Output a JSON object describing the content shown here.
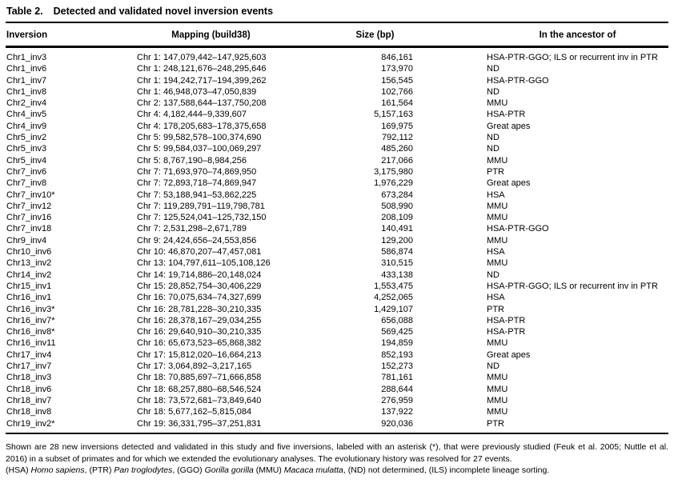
{
  "table": {
    "label": "Table 2.",
    "title": "Detected and validated novel inversion events",
    "columns": [
      "Inversion",
      "Mapping (build38)",
      "Size (bp)",
      "In the ancestor of"
    ],
    "rows": [
      {
        "inv": "Chr1_inv3",
        "map": "Chr 1: 147,079,442–147,925,603",
        "size": "846,161",
        "anc": "HSA-PTR-GGO; ILS or recurrent inv in PTR"
      },
      {
        "inv": "Chr1_inv6",
        "map": "Chr 1: 248,121,676–248,295,646",
        "size": "173,970",
        "anc": "ND"
      },
      {
        "inv": "Chr1_inv7",
        "map": "Chr 1: 194,242,717–194,399,262",
        "size": "156,545",
        "anc": "HSA-PTR-GGO"
      },
      {
        "inv": "Chr1_inv8",
        "map": "Chr 1: 46,948,073–47,050,839",
        "size": "102,766",
        "anc": "ND"
      },
      {
        "inv": "Chr2_inv4",
        "map": "Chr 2: 137,588,644–137,750,208",
        "size": "161,564",
        "anc": "MMU"
      },
      {
        "inv": "Chr4_inv5",
        "map": "Chr 4: 4,182,444–9,339,607",
        "size": "5,157,163",
        "anc": "HSA-PTR"
      },
      {
        "inv": "Chr4_inv9",
        "map": "Chr 4: 178,205,683–178,375,658",
        "size": "169,975",
        "anc": "Great apes"
      },
      {
        "inv": "Chr5_inv2",
        "map": "Chr 5: 99,582,578–100,374,690",
        "size": "792,112",
        "anc": "ND"
      },
      {
        "inv": "Chr5_inv3",
        "map": "Chr 5: 99,584,037–100,069,297",
        "size": "485,260",
        "anc": "ND"
      },
      {
        "inv": "Chr5_inv4",
        "map": "Chr 5: 8,767,190–8,984,256",
        "size": "217,066",
        "anc": "MMU"
      },
      {
        "inv": "Chr7_inv6",
        "map": "Chr 7: 71,693,970–74,869,950",
        "size": "3,175,980",
        "anc": "PTR"
      },
      {
        "inv": "Chr7_inv8",
        "map": "Chr 7: 72,893,718–74,869,947",
        "size": "1,976,229",
        "anc": "Great apes"
      },
      {
        "inv": "Chr7_inv10*",
        "map": "Chr 7: 53,188,941–53,862,225",
        "size": "673,284",
        "anc": "HSA"
      },
      {
        "inv": "Chr7_inv12",
        "map": "Chr 7: 119,289,791–119,798,781",
        "size": "508,990",
        "anc": "MMU"
      },
      {
        "inv": "Chr7_inv16",
        "map": "Chr 7: 125,524,041–125,732,150",
        "size": "208,109",
        "anc": "MMU"
      },
      {
        "inv": "Chr7_inv18",
        "map": "Chr 7: 2,531,298–2,671,789",
        "size": "140,491",
        "anc": "HSA-PTR-GGO"
      },
      {
        "inv": "Chr9_inv4",
        "map": "Chr 9: 24,424,656–24,553,856",
        "size": "129,200",
        "anc": "MMU"
      },
      {
        "inv": "Chr10_inv6",
        "map": "Chr 10: 46,870,207–47,457,081",
        "size": "586,874",
        "anc": "HSA"
      },
      {
        "inv": "Chr13_inv2",
        "map": "Chr 13: 104,797,611–105,108,126",
        "size": "310,515",
        "anc": "MMU"
      },
      {
        "inv": "Chr14_inv2",
        "map": "Chr 14: 19,714,886–20,148,024",
        "size": "433,138",
        "anc": "ND"
      },
      {
        "inv": "Chr15_inv1",
        "map": "Chr 15: 28,852,754–30,406,229",
        "size": "1,553,475",
        "anc": "HSA-PTR-GGO; ILS or recurrent inv in PTR"
      },
      {
        "inv": "Chr16_inv1",
        "map": "Chr 16: 70,075,634–74,327,699",
        "size": "4,252,065",
        "anc": "HSA"
      },
      {
        "inv": "Chr16_inv3*",
        "map": "Chr 16: 28,781,228–30,210,335",
        "size": "1,429,107",
        "anc": "PTR"
      },
      {
        "inv": "Chr16_inv7*",
        "map": "Chr 16: 28,378,167–29,034,255",
        "size": "656,088",
        "anc": "HSA-PTR"
      },
      {
        "inv": "Chr16_inv8*",
        "map": "Chr 16: 29,640,910–30,210,335",
        "size": "569,425",
        "anc": "HSA-PTR"
      },
      {
        "inv": "Chr16_inv11",
        "map": "Chr 16: 65,673,523–65,868,382",
        "size": "194,859",
        "anc": "MMU"
      },
      {
        "inv": "Chr17_inv4",
        "map": "Chr 17: 15,812,020–16,664,213",
        "size": "852,193",
        "anc": "Great apes"
      },
      {
        "inv": "Chr17_inv7",
        "map": "Chr 17: 3,064,892–3,217,165",
        "size": "152,273",
        "anc": "ND"
      },
      {
        "inv": "Chr18_inv3",
        "map": "Chr 18: 70,885,697–71,666,858",
        "size": "781,161",
        "anc": "MMU"
      },
      {
        "inv": "Chr18_inv6",
        "map": "Chr 18: 68,257,880–68,546,524",
        "size": "288,644",
        "anc": "MMU"
      },
      {
        "inv": "Chr18_inv7",
        "map": "Chr 18: 73,572,681–73,849,640",
        "size": "276,959",
        "anc": "MMU"
      },
      {
        "inv": "Chr18_inv8",
        "map": "Chr 18: 5,677,162–5,815,084",
        "size": "137,922",
        "anc": "MMU"
      },
      {
        "inv": "Chr19_inv2*",
        "map": "Chr 19: 36,331,795–37,251,831",
        "size": "920,036",
        "anc": "PTR"
      }
    ]
  },
  "footnotes": {
    "main": "Shown are 28 new inversions detected and validated in this study and five inversions, labeled with an asterisk (*), that were previously studied (Feuk et al. 2005; Nuttle et al. 2016) in a subset of primates and for which we extended the evolutionary analyses. The evolutionary history was resolved for 27 events.",
    "abbreviations": [
      {
        "t": "(HSA) "
      },
      {
        "t": "Homo sapiens",
        "i": true
      },
      {
        "t": ", (PTR) "
      },
      {
        "t": "Pan troglodytes",
        "i": true
      },
      {
        "t": ", (GGO) "
      },
      {
        "t": "Gorilla gorilla",
        "i": true
      },
      {
        "t": " (MMU) "
      },
      {
        "t": "Macaca mulatta",
        "i": true
      },
      {
        "t": ", (ND) not determined, (ILS) incomplete lineage sorting."
      }
    ]
  },
  "colors": {
    "text": "#000000",
    "background": "#ffffff",
    "rule": "#000000"
  }
}
